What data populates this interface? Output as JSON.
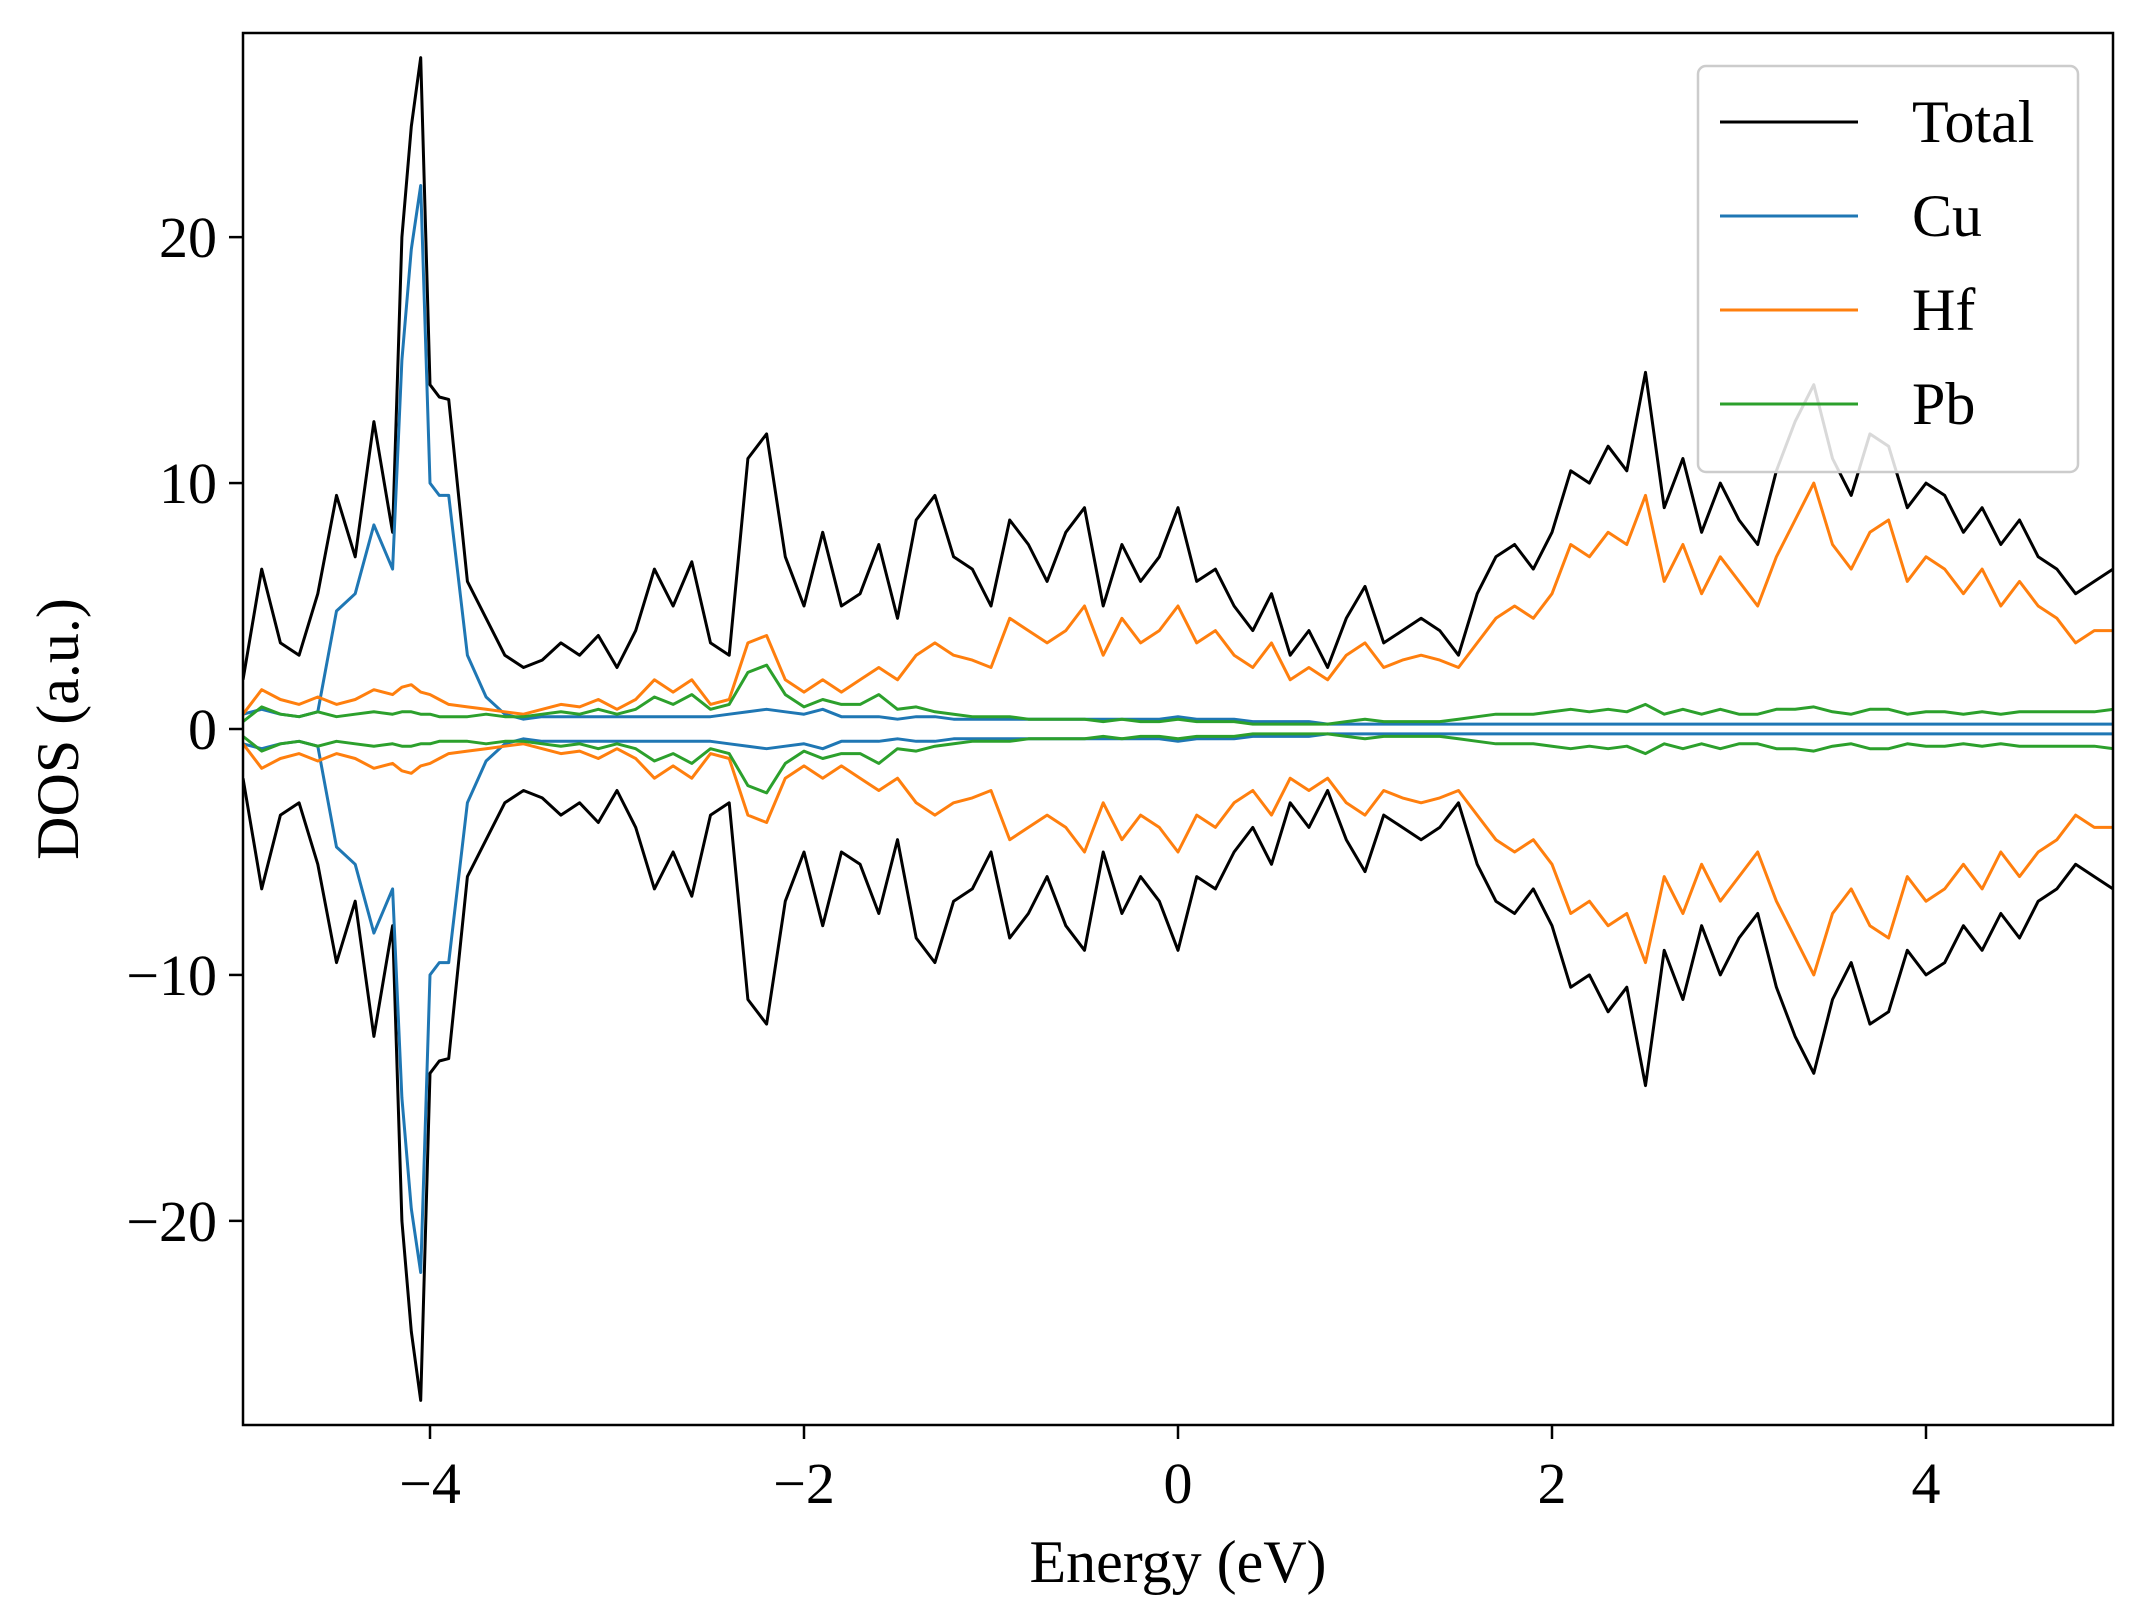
{
  "chart_data": {
    "type": "line",
    "title": "",
    "xlabel": "Energy (eV)",
    "ylabel": "DOS (a.u.)",
    "xlim": [
      -5,
      5
    ],
    "ylim": [
      -28.3,
      28.3
    ],
    "x_ticks": [
      -4,
      -2,
      0,
      2,
      4
    ],
    "y_ticks": [
      -20,
      -10,
      0,
      10,
      20
    ],
    "x_tick_labels": [
      "−4",
      "−2",
      "0",
      "2",
      "4"
    ],
    "y_tick_labels": [
      "−20",
      "−10",
      "0",
      "10",
      "20"
    ],
    "grid": false,
    "legend_position": "top-right",
    "spin_symmetric": true,
    "x": [
      -5.0,
      -4.9,
      -4.8,
      -4.7,
      -4.6,
      -4.5,
      -4.4,
      -4.3,
      -4.2,
      -4.15,
      -4.1,
      -4.05,
      -4.0,
      -3.95,
      -3.9,
      -3.8,
      -3.7,
      -3.6,
      -3.5,
      -3.4,
      -3.3,
      -3.2,
      -3.1,
      -3.0,
      -2.9,
      -2.8,
      -2.7,
      -2.6,
      -2.5,
      -2.4,
      -2.3,
      -2.2,
      -2.1,
      -2.0,
      -1.9,
      -1.8,
      -1.7,
      -1.6,
      -1.5,
      -1.4,
      -1.3,
      -1.2,
      -1.1,
      -1.0,
      -0.9,
      -0.8,
      -0.7,
      -0.6,
      -0.5,
      -0.4,
      -0.3,
      -0.2,
      -0.1,
      0.0,
      0.1,
      0.2,
      0.3,
      0.4,
      0.5,
      0.6,
      0.7,
      0.8,
      0.9,
      1.0,
      1.1,
      1.2,
      1.3,
      1.4,
      1.5,
      1.6,
      1.7,
      1.8,
      1.9,
      2.0,
      2.1,
      2.2,
      2.3,
      2.4,
      2.5,
      2.6,
      2.7,
      2.8,
      2.9,
      3.0,
      3.1,
      3.2,
      3.3,
      3.4,
      3.5,
      3.6,
      3.7,
      3.8,
      3.9,
      4.0,
      4.1,
      4.2,
      4.3,
      4.4,
      4.5,
      4.6,
      4.7,
      4.8,
      4.9,
      5.0
    ],
    "series": [
      {
        "name": "Total",
        "color": "#000000",
        "values": [
          2.0,
          6.5,
          3.5,
          3.0,
          5.5,
          9.5,
          7.0,
          12.5,
          8.0,
          20.0,
          24.5,
          27.3,
          14.0,
          13.5,
          13.4,
          6.0,
          4.5,
          3.0,
          2.5,
          2.8,
          3.5,
          3.0,
          3.8,
          2.5,
          4.0,
          6.5,
          5.0,
          6.8,
          3.5,
          3.0,
          11.0,
          12.0,
          7.0,
          5.0,
          8.0,
          5.0,
          5.5,
          7.5,
          4.5,
          8.5,
          9.5,
          7.0,
          6.5,
          5.0,
          8.5,
          7.5,
          6.0,
          8.0,
          9.0,
          5.0,
          7.5,
          6.0,
          7.0,
          9.0,
          6.0,
          6.5,
          5.0,
          4.0,
          5.5,
          3.0,
          4.0,
          2.5,
          4.5,
          5.8,
          3.5,
          4.0,
          4.5,
          4.0,
          3.0,
          5.5,
          7.0,
          7.5,
          6.5,
          8.0,
          10.5,
          10.0,
          11.5,
          10.5,
          14.5,
          9.0,
          11.0,
          8.0,
          10.0,
          8.5,
          7.5,
          10.5,
          12.5,
          14.0,
          11.0,
          9.5,
          12.0,
          11.5,
          9.0,
          10.0,
          9.5,
          8.0,
          9.0,
          7.5,
          8.5,
          7.0,
          6.5,
          5.5,
          6.0,
          6.5
        ]
      },
      {
        "name": "Cu",
        "color": "#1f77b4",
        "values": [
          0.6,
          0.8,
          0.6,
          0.5,
          0.7,
          4.8,
          5.5,
          8.3,
          6.5,
          15.0,
          19.5,
          22.1,
          10.0,
          9.5,
          9.5,
          3.0,
          1.3,
          0.6,
          0.4,
          0.5,
          0.5,
          0.5,
          0.5,
          0.5,
          0.5,
          0.5,
          0.5,
          0.5,
          0.5,
          0.6,
          0.7,
          0.8,
          0.7,
          0.6,
          0.8,
          0.5,
          0.5,
          0.5,
          0.4,
          0.5,
          0.5,
          0.4,
          0.4,
          0.4,
          0.4,
          0.4,
          0.4,
          0.4,
          0.4,
          0.4,
          0.4,
          0.4,
          0.4,
          0.5,
          0.4,
          0.4,
          0.4,
          0.3,
          0.3,
          0.3,
          0.3,
          0.2,
          0.2,
          0.2,
          0.2,
          0.2,
          0.2,
          0.2,
          0.2,
          0.2,
          0.2,
          0.2,
          0.2,
          0.2,
          0.2,
          0.2,
          0.2,
          0.2,
          0.2,
          0.2,
          0.2,
          0.2,
          0.2,
          0.2,
          0.2,
          0.2,
          0.2,
          0.2,
          0.2,
          0.2,
          0.2,
          0.2,
          0.2,
          0.2,
          0.2,
          0.2,
          0.2,
          0.2,
          0.2,
          0.2,
          0.2,
          0.2,
          0.2,
          0.2
        ]
      },
      {
        "name": "Hf",
        "color": "#ff7f0e",
        "values": [
          0.6,
          1.6,
          1.2,
          1.0,
          1.3,
          1.0,
          1.2,
          1.6,
          1.4,
          1.7,
          1.8,
          1.5,
          1.4,
          1.2,
          1.0,
          0.9,
          0.8,
          0.7,
          0.6,
          0.8,
          1.0,
          0.9,
          1.2,
          0.8,
          1.2,
          2.0,
          1.5,
          2.0,
          1.0,
          1.2,
          3.5,
          3.8,
          2.0,
          1.5,
          2.0,
          1.5,
          2.0,
          2.5,
          2.0,
          3.0,
          3.5,
          3.0,
          2.8,
          2.5,
          4.5,
          4.0,
          3.5,
          4.0,
          5.0,
          3.0,
          4.5,
          3.5,
          4.0,
          5.0,
          3.5,
          4.0,
          3.0,
          2.5,
          3.5,
          2.0,
          2.5,
          2.0,
          3.0,
          3.5,
          2.5,
          2.8,
          3.0,
          2.8,
          2.5,
          3.5,
          4.5,
          5.0,
          4.5,
          5.5,
          7.5,
          7.0,
          8.0,
          7.5,
          9.5,
          6.0,
          7.5,
          5.5,
          7.0,
          6.0,
          5.0,
          7.0,
          8.5,
          10.0,
          7.5,
          6.5,
          8.0,
          8.5,
          6.0,
          7.0,
          6.5,
          5.5,
          6.5,
          5.0,
          6.0,
          5.0,
          4.5,
          3.5,
          4.0,
          4.0
        ]
      },
      {
        "name": "Pb",
        "color": "#2ca02c",
        "values": [
          0.3,
          0.9,
          0.6,
          0.5,
          0.7,
          0.5,
          0.6,
          0.7,
          0.6,
          0.7,
          0.7,
          0.6,
          0.6,
          0.5,
          0.5,
          0.5,
          0.6,
          0.5,
          0.5,
          0.6,
          0.7,
          0.6,
          0.8,
          0.6,
          0.8,
          1.3,
          1.0,
          1.4,
          0.8,
          1.0,
          2.3,
          2.6,
          1.4,
          0.9,
          1.2,
          1.0,
          1.0,
          1.4,
          0.8,
          0.9,
          0.7,
          0.6,
          0.5,
          0.5,
          0.5,
          0.4,
          0.4,
          0.4,
          0.4,
          0.3,
          0.4,
          0.3,
          0.3,
          0.4,
          0.3,
          0.3,
          0.3,
          0.2,
          0.2,
          0.2,
          0.2,
          0.2,
          0.3,
          0.4,
          0.3,
          0.3,
          0.3,
          0.3,
          0.4,
          0.5,
          0.6,
          0.6,
          0.6,
          0.7,
          0.8,
          0.7,
          0.8,
          0.7,
          1.0,
          0.6,
          0.8,
          0.6,
          0.8,
          0.6,
          0.6,
          0.8,
          0.8,
          0.9,
          0.7,
          0.6,
          0.8,
          0.8,
          0.6,
          0.7,
          0.7,
          0.6,
          0.7,
          0.6,
          0.7,
          0.7,
          0.7,
          0.7,
          0.7,
          0.8
        ]
      }
    ]
  }
}
